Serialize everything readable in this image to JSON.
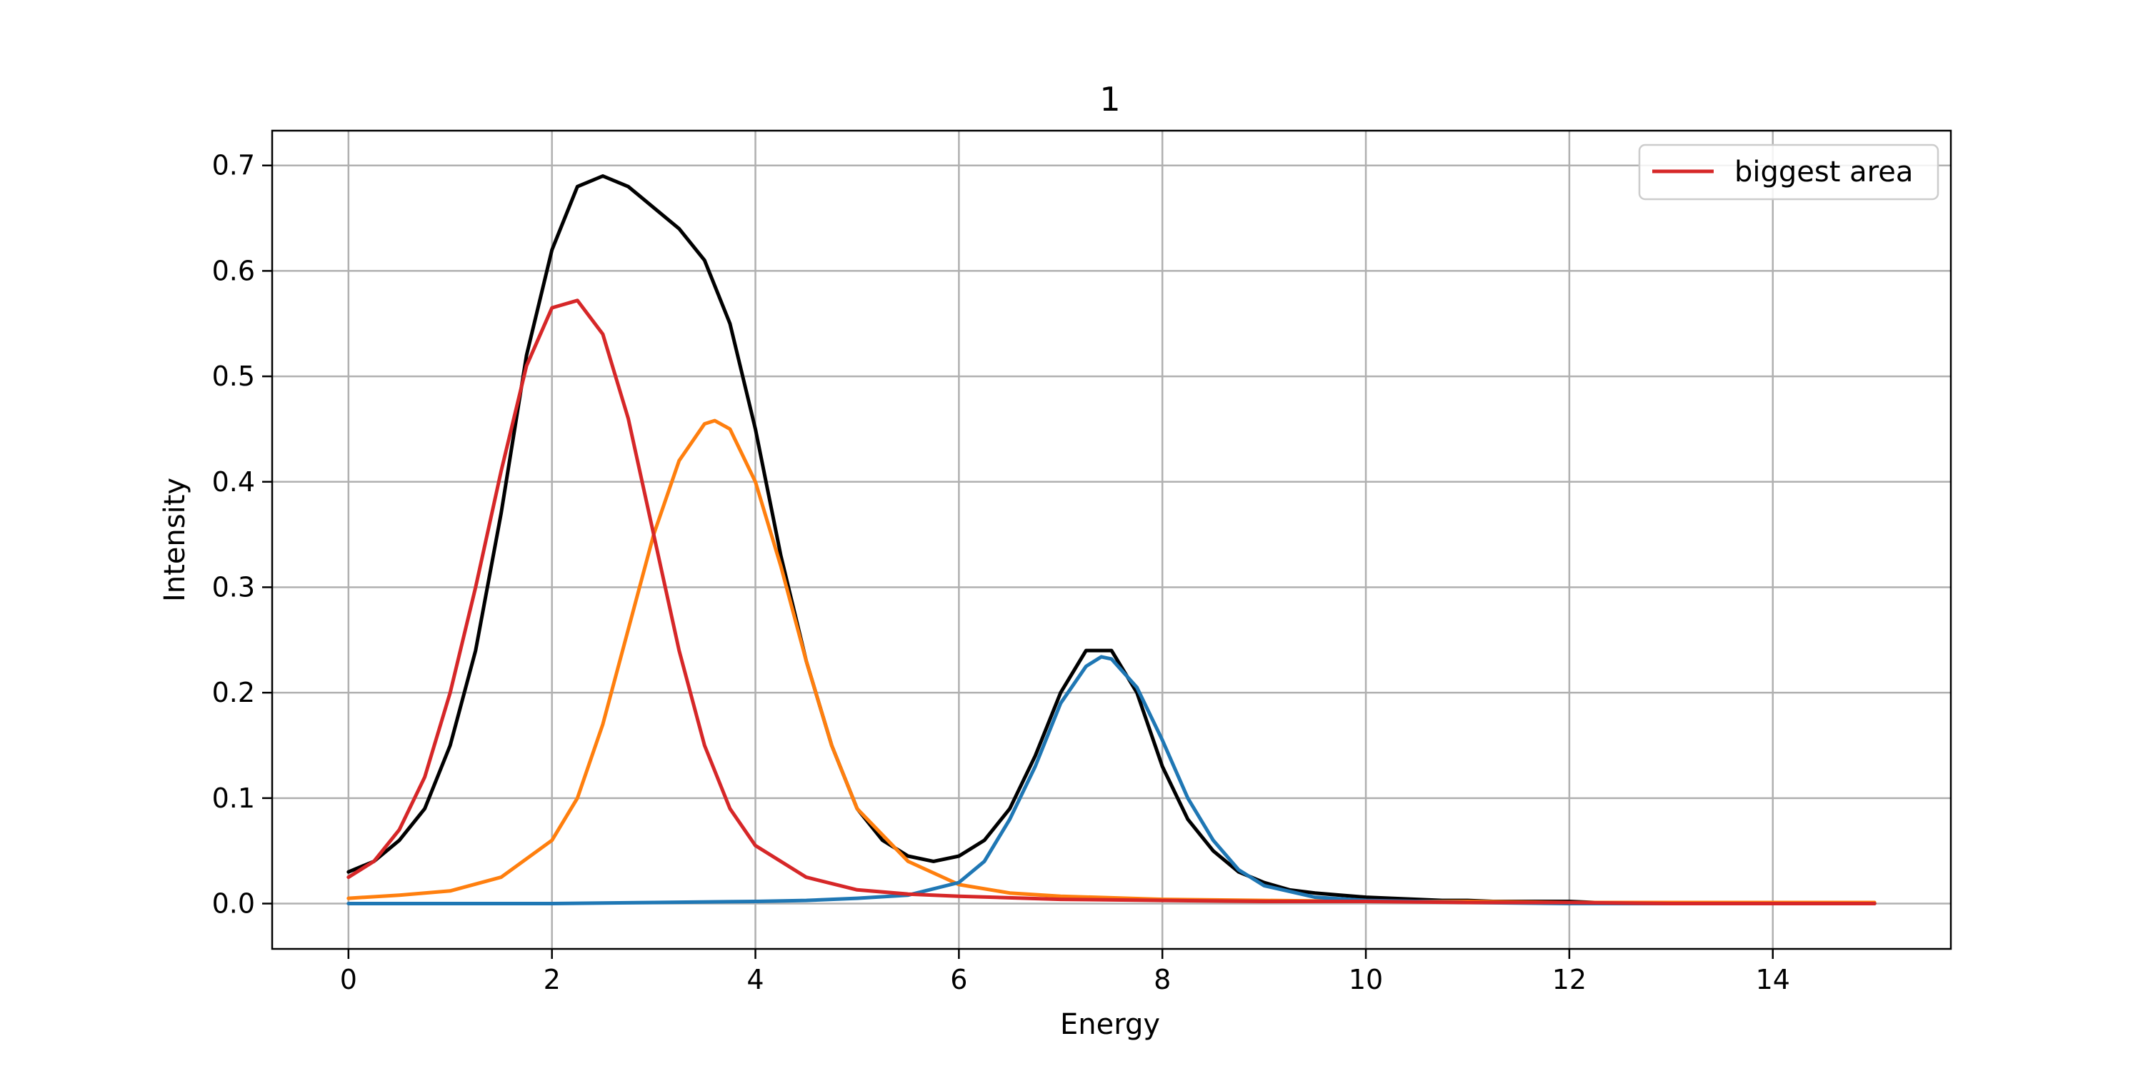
{
  "chart_data": {
    "type": "line",
    "title": "1",
    "xlabel": "Energy",
    "ylabel": "Intensity",
    "xlim": [
      -0.75,
      15.75
    ],
    "ylim": [
      -0.043,
      0.733
    ],
    "xticks": [
      0,
      2,
      4,
      6,
      8,
      10,
      12,
      14
    ],
    "yticks": [
      0.0,
      0.1,
      0.2,
      0.3,
      0.4,
      0.5,
      0.6,
      0.7
    ],
    "ytick_labels": [
      "0.0",
      "0.1",
      "0.2",
      "0.3",
      "0.4",
      "0.5",
      "0.6",
      "0.7"
    ],
    "grid": true,
    "legend": {
      "position": "top-right",
      "entries": [
        {
          "label": "biggest area",
          "color": "#d62728"
        }
      ]
    },
    "series": [
      {
        "color": "#000000",
        "x": [
          0.0,
          0.25,
          0.5,
          0.75,
          1.0,
          1.25,
          1.5,
          1.75,
          2.0,
          2.25,
          2.5,
          2.75,
          3.0,
          3.25,
          3.5,
          3.75,
          4.0,
          4.25,
          4.5,
          4.75,
          5.0,
          5.25,
          5.5,
          5.75,
          6.0,
          6.25,
          6.5,
          6.75,
          7.0,
          7.25,
          7.5,
          7.75,
          8.0,
          8.25,
          8.5,
          8.75,
          9.0,
          9.25,
          9.5,
          9.75,
          10.0,
          10.25,
          10.5,
          10.75,
          11.0,
          11.25,
          11.5,
          11.75,
          12.0,
          12.25,
          12.5,
          12.75,
          13.0,
          13.25,
          13.5,
          13.75,
          14.0,
          14.25,
          14.5,
          14.75,
          15.0
        ],
        "y": [
          0.03,
          0.04,
          0.06,
          0.09,
          0.15,
          0.24,
          0.37,
          0.52,
          0.62,
          0.68,
          0.69,
          0.68,
          0.66,
          0.64,
          0.61,
          0.55,
          0.45,
          0.33,
          0.23,
          0.15,
          0.09,
          0.06,
          0.045,
          0.04,
          0.045,
          0.06,
          0.09,
          0.14,
          0.2,
          0.24,
          0.24,
          0.2,
          0.13,
          0.08,
          0.05,
          0.03,
          0.02,
          0.013,
          0.01,
          0.008,
          0.006,
          0.005,
          0.004,
          0.003,
          0.003,
          0.002,
          0.002,
          0.002,
          0.002,
          0.001,
          0.001,
          0.001,
          0.001,
          0.0,
          0.0,
          0.0,
          0.0,
          0.0,
          0.0,
          0.0,
          0.0
        ]
      },
      {
        "color": "#ff7f0e",
        "x": [
          0.0,
          0.5,
          1.0,
          1.5,
          2.0,
          2.25,
          2.5,
          2.75,
          3.0,
          3.25,
          3.5,
          3.6,
          3.75,
          4.0,
          4.25,
          4.5,
          4.75,
          5.0,
          5.5,
          6.0,
          6.5,
          7.0,
          8.0,
          9.0,
          10.0,
          11.0,
          12.0,
          13.0,
          14.0,
          15.0
        ],
        "y": [
          0.005,
          0.008,
          0.012,
          0.025,
          0.06,
          0.1,
          0.17,
          0.26,
          0.35,
          0.42,
          0.455,
          0.458,
          0.45,
          0.4,
          0.32,
          0.23,
          0.15,
          0.09,
          0.04,
          0.018,
          0.01,
          0.007,
          0.004,
          0.003,
          0.002,
          0.002,
          0.001,
          0.001,
          0.001,
          0.001
        ]
      },
      {
        "color": "#1f77b4",
        "x": [
          0.0,
          1.0,
          2.0,
          3.0,
          4.0,
          4.5,
          5.0,
          5.5,
          6.0,
          6.25,
          6.5,
          6.75,
          7.0,
          7.25,
          7.4,
          7.5,
          7.75,
          8.0,
          8.25,
          8.5,
          8.75,
          9.0,
          9.5,
          10.0,
          11.0,
          12.0,
          13.0,
          14.0,
          15.0
        ],
        "y": [
          0.0,
          0.0,
          0.0,
          0.001,
          0.002,
          0.003,
          0.005,
          0.008,
          0.02,
          0.04,
          0.08,
          0.13,
          0.19,
          0.225,
          0.234,
          0.232,
          0.205,
          0.155,
          0.1,
          0.06,
          0.032,
          0.017,
          0.006,
          0.003,
          0.001,
          0.0,
          0.0,
          0.0,
          0.0
        ]
      },
      {
        "name": "biggest area",
        "color": "#d62728",
        "x": [
          0.0,
          0.25,
          0.5,
          0.75,
          1.0,
          1.25,
          1.5,
          1.75,
          2.0,
          2.25,
          2.5,
          2.75,
          3.0,
          3.25,
          3.5,
          3.75,
          4.0,
          4.5,
          5.0,
          5.5,
          6.0,
          7.0,
          8.0,
          9.0,
          10.0,
          11.0,
          12.0,
          13.0,
          14.0,
          15.0
        ],
        "y": [
          0.025,
          0.04,
          0.07,
          0.12,
          0.2,
          0.3,
          0.41,
          0.51,
          0.565,
          0.572,
          0.54,
          0.46,
          0.35,
          0.24,
          0.15,
          0.09,
          0.055,
          0.025,
          0.013,
          0.009,
          0.007,
          0.004,
          0.003,
          0.002,
          0.002,
          0.001,
          0.001,
          0.0,
          0.0,
          0.0
        ]
      }
    ]
  }
}
